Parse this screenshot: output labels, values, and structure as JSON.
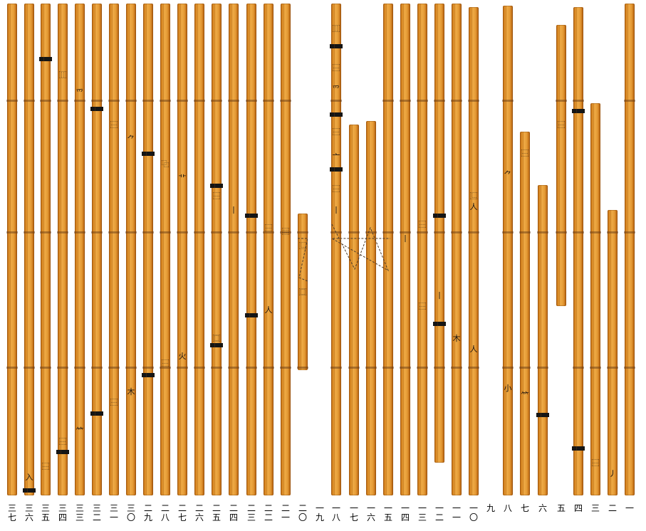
{
  "numerals": [
    "三七",
    "三六",
    "三五",
    "三四",
    "三三",
    "三二",
    "三一",
    "三〇",
    "二九",
    "二八",
    "二七",
    "二六",
    "二五",
    "二四",
    "二三",
    "二二",
    "二一",
    "二〇",
    "一九",
    "一八",
    "一七",
    "一六",
    "一五",
    "一四",
    "一三",
    "一二",
    "一一",
    "一〇",
    "九",
    "八",
    "七",
    "六",
    "五",
    "四",
    "三",
    "二",
    "一"
  ],
  "colors": {
    "slip": "#e49a35",
    "ink": "#151515",
    "background": "#ffffff"
  }
}
